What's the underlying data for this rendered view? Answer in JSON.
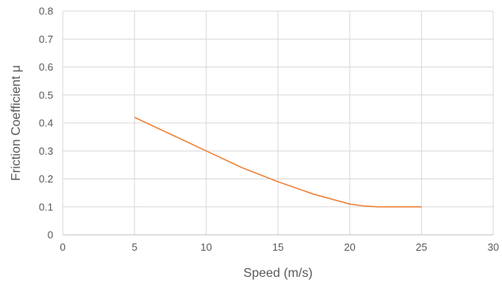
{
  "chart_data": {
    "type": "line",
    "title": "",
    "xlabel": "Speed  (m/s)",
    "ylabel": "Friction Coefficient μ",
    "xlim": [
      0,
      30
    ],
    "ylim": [
      0,
      0.8
    ],
    "x_ticks": [
      "0",
      "5",
      "10",
      "15",
      "20",
      "25",
      "30"
    ],
    "y_ticks": [
      "0",
      "0.1",
      "0.2",
      "0.3",
      "0.4",
      "0.5",
      "0.6",
      "0.7",
      "0.8"
    ],
    "grid": true,
    "legend": "none",
    "series": [
      {
        "color": "#ED7D31",
        "x": [
          5,
          7.5,
          10,
          12.5,
          15,
          17.5,
          20,
          21,
          22,
          23,
          24,
          25
        ],
        "y": [
          0.42,
          0.36,
          0.3,
          0.24,
          0.19,
          0.145,
          0.11,
          0.103,
          0.1,
          0.1,
          0.1,
          0.1
        ]
      }
    ]
  }
}
